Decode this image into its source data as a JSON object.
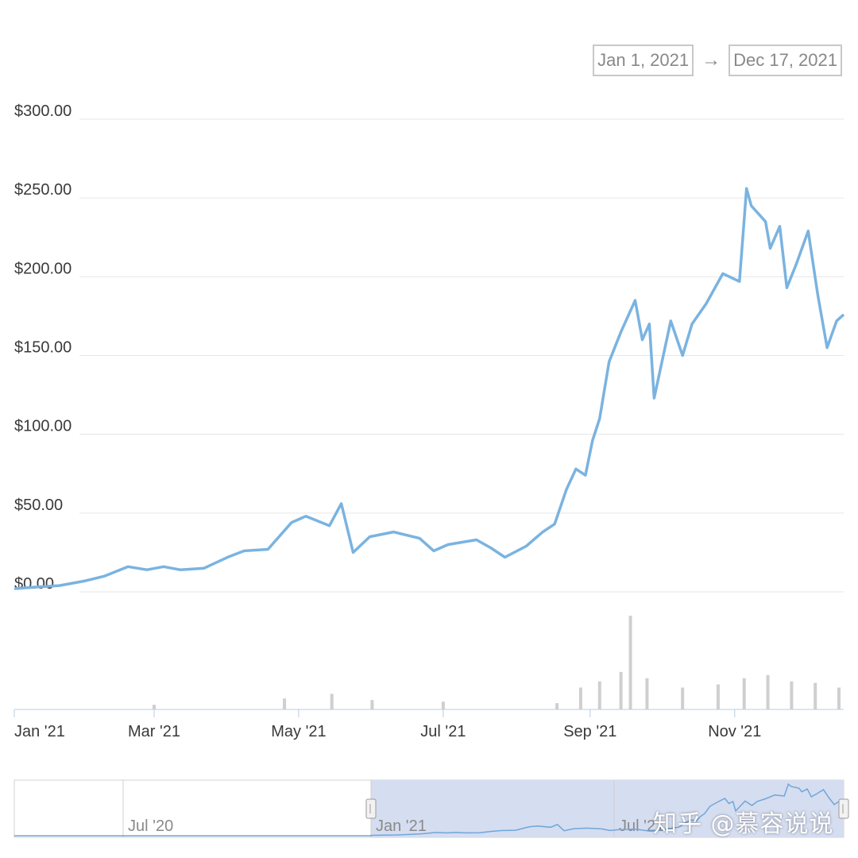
{
  "date_range": {
    "from": "Jan 1, 2021",
    "arrow": "→",
    "to": "Dec 17, 2021"
  },
  "colors": {
    "line": "#7ab3e0",
    "grid": "#e6e6e6",
    "volume": "#cfcfcf",
    "navigator_fill": "#d5ddf0",
    "navigator_line": "#6fa7da"
  },
  "chart_data": {
    "type": "line",
    "title": "",
    "xlabel": "",
    "ylabel": "",
    "ylim": [
      0,
      300
    ],
    "xlim": [
      "2021-01-01",
      "2021-12-17"
    ],
    "y_ticks": [
      "$0.00",
      "$50.00",
      "$100.00",
      "$150.00",
      "$200.00",
      "$250.00",
      "$300.00"
    ],
    "x_ticks": [
      "Jan '21",
      "Mar '21",
      "May '21",
      "Jul '21",
      "Sep '21",
      "Nov '21"
    ],
    "grid": true,
    "series": [
      {
        "x": [
          "2021-01-01",
          "2021-01-10",
          "2021-01-20",
          "2021-01-31",
          "2021-02-08",
          "2021-02-18",
          "2021-02-26",
          "2021-03-05",
          "2021-03-12",
          "2021-03-22",
          "2021-04-01",
          "2021-04-08",
          "2021-04-18",
          "2021-04-28",
          "2021-05-04",
          "2021-05-14",
          "2021-05-19",
          "2021-05-24",
          "2021-05-31",
          "2021-06-10",
          "2021-06-21",
          "2021-06-27",
          "2021-07-03",
          "2021-07-15",
          "2021-07-21",
          "2021-07-27",
          "2021-08-05",
          "2021-08-12",
          "2021-08-17",
          "2021-08-22",
          "2021-08-26",
          "2021-08-30",
          "2021-09-02",
          "2021-09-05",
          "2021-09-09",
          "2021-09-14",
          "2021-09-20",
          "2021-09-23",
          "2021-09-26",
          "2021-09-28",
          "2021-10-05",
          "2021-10-10",
          "2021-10-14",
          "2021-10-20",
          "2021-10-27",
          "2021-11-03",
          "2021-11-06",
          "2021-11-08",
          "2021-11-14",
          "2021-11-16",
          "2021-11-20",
          "2021-11-23",
          "2021-11-27",
          "2021-12-02",
          "2021-12-06",
          "2021-12-10",
          "2021-12-14",
          "2021-12-17"
        ],
        "values": [
          2,
          3,
          4,
          7,
          10,
          16,
          14,
          16,
          14,
          15,
          22,
          26,
          27,
          44,
          48,
          42,
          56,
          25,
          35,
          38,
          34,
          26,
          30,
          33,
          28,
          22,
          29,
          38,
          43,
          65,
          78,
          74,
          96,
          110,
          146,
          165,
          185,
          160,
          170,
          123,
          172,
          150,
          170,
          183,
          202,
          197,
          256,
          245,
          235,
          218,
          232,
          193,
          208,
          229,
          189,
          155,
          172,
          176
        ]
      }
    ],
    "volume": {
      "x": [
        "2021-03-01",
        "2021-04-25",
        "2021-05-15",
        "2021-06-01",
        "2021-07-01",
        "2021-08-18",
        "2021-08-28",
        "2021-09-05",
        "2021-09-14",
        "2021-09-18",
        "2021-09-25",
        "2021-10-10",
        "2021-10-25",
        "2021-11-05",
        "2021-11-15",
        "2021-11-25",
        "2021-12-05",
        "2021-12-15"
      ],
      "values": [
        3,
        7,
        10,
        6,
        5,
        4,
        14,
        18,
        24,
        60,
        20,
        14,
        16,
        20,
        22,
        18,
        17,
        14
      ]
    },
    "navigator": {
      "x_ticks": [
        "Jul '20",
        "Jan '21",
        "Jul '21"
      ]
    }
  }
}
